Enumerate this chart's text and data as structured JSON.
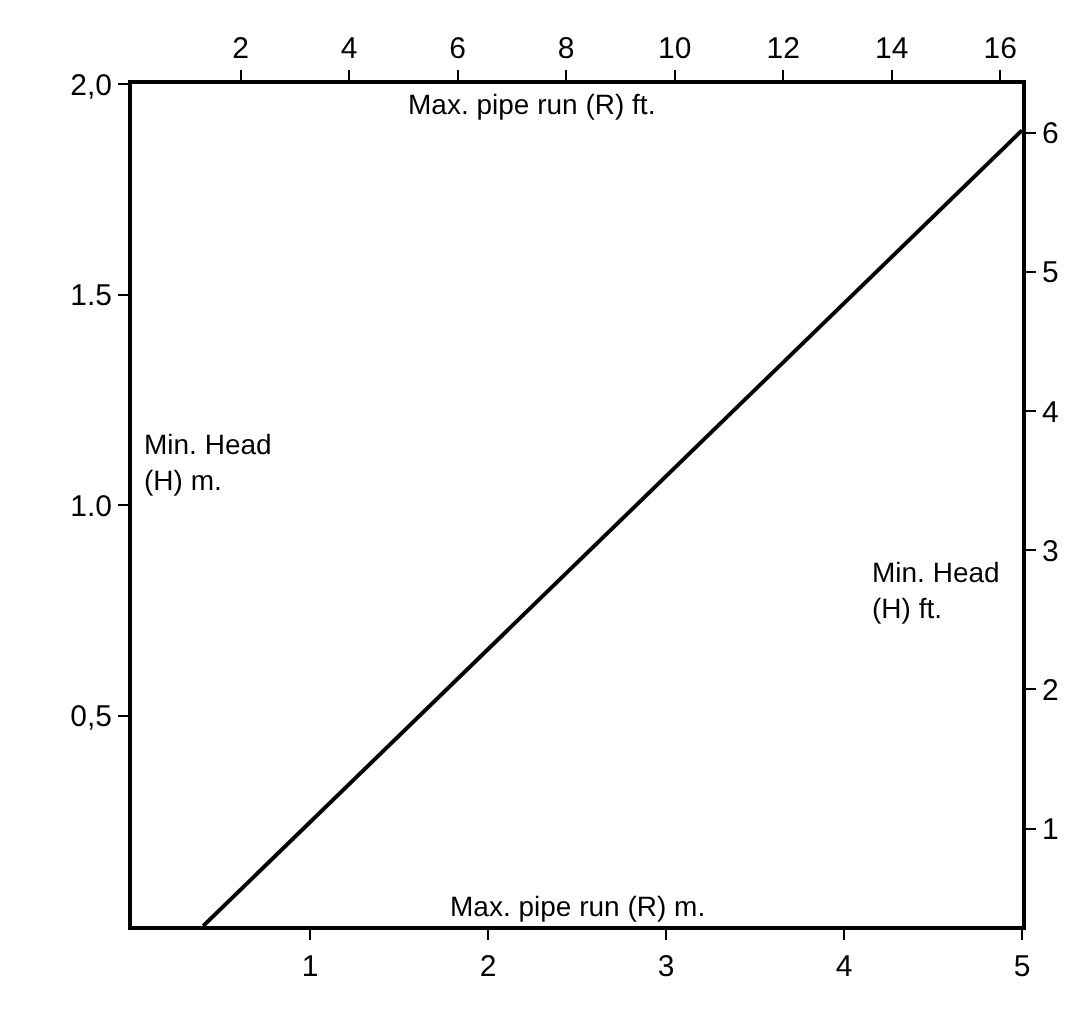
{
  "chart_data": {
    "type": "line",
    "xlabel": "Max. pipe run (R) m.",
    "x2label": "Max. pipe run (R) ft.",
    "ylabel": "Min. Head\n(H) m.",
    "y2label": "Min. Head\n(H) ft.",
    "xlim": [
      0,
      5
    ],
    "xticks": [
      1,
      2,
      3,
      4,
      5
    ],
    "x2lim": [
      0,
      16.4
    ],
    "x2ticks": [
      2,
      4,
      6,
      8,
      10,
      12,
      14,
      16
    ],
    "ylim": [
      0,
      2
    ],
    "yticks": [
      {
        "value": 0.5,
        "label": "0,5"
      },
      {
        "value": 1.0,
        "label": "1.0"
      },
      {
        "value": 1.5,
        "label": "1.5"
      },
      {
        "value": 2.0,
        "label": "2,0"
      }
    ],
    "y2lim": [
      0.3,
      6.35
    ],
    "y2ticks": [
      1,
      2,
      3,
      4,
      5,
      6
    ],
    "series": [
      {
        "color": "#000000",
        "x": [
          0.4,
          5
        ],
        "values": [
          0,
          1.89
        ]
      }
    ],
    "marker": "none",
    "line_style": "solid"
  }
}
